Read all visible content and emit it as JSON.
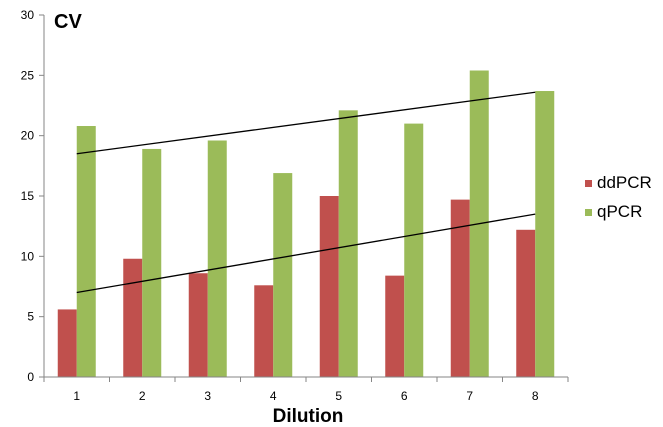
{
  "chart_data": {
    "type": "bar",
    "ylabel": "CV",
    "xlabel": "Dilution",
    "categories": [
      "1",
      "2",
      "3",
      "4",
      "5",
      "6",
      "7",
      "8"
    ],
    "ylim": [
      0,
      30
    ],
    "yticks": [
      0,
      5,
      10,
      15,
      20,
      25,
      30
    ],
    "grid": false,
    "legend_position": "right",
    "series": [
      {
        "name": "ddPCR",
        "color": "#C0504D",
        "values": [
          5.6,
          9.8,
          8.6,
          7.6,
          15.0,
          8.4,
          14.7,
          12.2
        ]
      },
      {
        "name": "qPCR",
        "color": "#9BBB59",
        "values": [
          20.8,
          18.9,
          19.6,
          16.9,
          22.1,
          21.0,
          25.4,
          23.7
        ]
      }
    ],
    "trendlines": [
      {
        "series": "ddPCR",
        "color": "#000000",
        "x_start": 1,
        "y_start": 7.0,
        "x_end": 8,
        "y_end": 13.5
      },
      {
        "series": "qPCR",
        "color": "#000000",
        "x_start": 1,
        "y_start": 18.5,
        "x_end": 8,
        "y_end": 23.6
      }
    ]
  }
}
